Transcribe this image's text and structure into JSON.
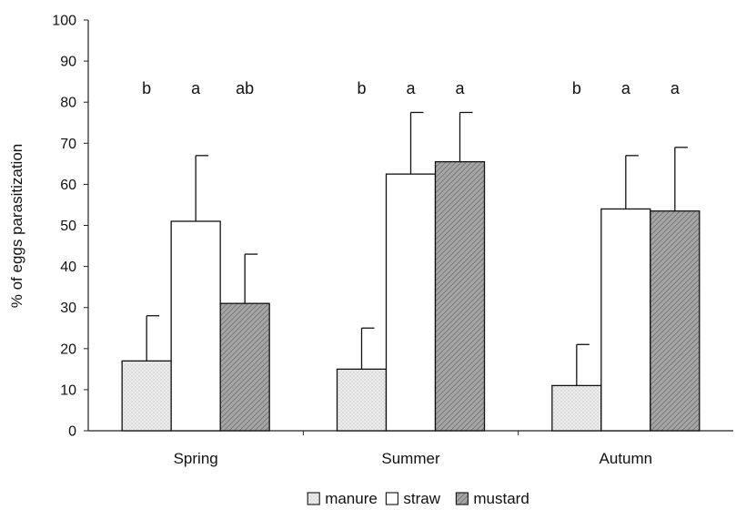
{
  "chart_data": {
    "type": "bar",
    "ylabel": "% of eggs parasitization",
    "xlabel": "",
    "ylim": [
      0,
      100
    ],
    "yticks": [
      0,
      10,
      20,
      30,
      40,
      50,
      60,
      70,
      80,
      90,
      100
    ],
    "categories": [
      "Spring",
      "Summer",
      "Autumn"
    ],
    "series": [
      {
        "name": "manure",
        "values": [
          17,
          15,
          11
        ],
        "errors": [
          11,
          10,
          10
        ],
        "color": "#e6e6e6"
      },
      {
        "name": "straw",
        "values": [
          51,
          62.5,
          54
        ],
        "errors": [
          16,
          15,
          13
        ],
        "color": "#ffffff"
      },
      {
        "name": "mustard",
        "values": [
          31,
          65.5,
          53.5
        ],
        "errors": [
          12,
          12,
          15.5
        ],
        "color": "#9e9e9e"
      }
    ],
    "significance": [
      [
        "b",
        "a",
        "ab"
      ],
      [
        "b",
        "a",
        "a"
      ],
      [
        "b",
        "a",
        "a"
      ]
    ],
    "legend": {
      "position": "bottom-center"
    },
    "grid": false
  }
}
